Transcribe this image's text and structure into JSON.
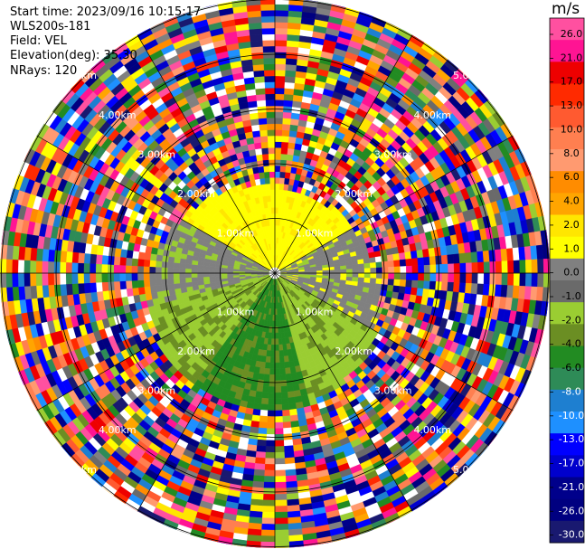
{
  "info": {
    "start_time": "Start time: 2023/09/16 10:15:17",
    "instrument": "WLS200s-181",
    "field": "Field: VEL",
    "elevation": "Elevation(deg): 35.30",
    "nrays": "NRays: 120"
  },
  "colorbar": {
    "unit": "m/s",
    "ticks": [
      "26.0",
      "21.0",
      "17.0",
      "13.0",
      "10.0",
      "8.0",
      "6.0",
      "4.0",
      "2.0",
      "1.0",
      "0.0",
      "-1.0",
      "-2.0",
      "-4.0",
      "-6.0",
      "-8.0",
      "-10.0",
      "-13.0",
      "-17.0",
      "-21.0",
      "-26.0",
      "-30.0"
    ],
    "colors": [
      "#ff50a0",
      "#ff1493",
      "#ee0000",
      "#ff2a00",
      "#ff5a30",
      "#ff7f50",
      "#ff9a70",
      "#ff8c00",
      "#ffa500",
      "#ffe600",
      "#ffff00",
      "#808080",
      "#6a6a6a",
      "#9acd32",
      "#6b8e23",
      "#228b22",
      "#2e8b57",
      "#1e7fd0",
      "#1e90ff",
      "#0000ff",
      "#0000cd",
      "#00008b",
      "#000080",
      "#191970"
    ]
  },
  "range_labels": [
    "1.00km",
    "2.00km",
    "3.00km",
    "4.00km",
    "5.00km"
  ]
}
